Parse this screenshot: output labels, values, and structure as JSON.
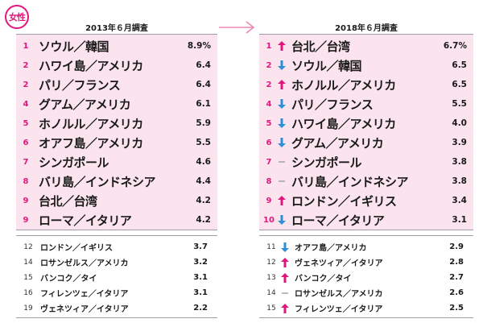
{
  "badge": "女性",
  "left": {
    "title": "2013年６月調査",
    "top": [
      {
        "rank": "1",
        "name": "ソウル／韓国",
        "share": "8.9%"
      },
      {
        "rank": "2",
        "name": "ハワイ島／アメリカ",
        "share": "6.4"
      },
      {
        "rank": "2",
        "name": "パリ／フランス",
        "share": "6.4"
      },
      {
        "rank": "4",
        "name": "グアム／アメリカ",
        "share": "6.1"
      },
      {
        "rank": "5",
        "name": "ホノルル／アメリカ",
        "share": "5.9"
      },
      {
        "rank": "6",
        "name": "オアフ島／アメリカ",
        "share": "5.5"
      },
      {
        "rank": "7",
        "name": "シンガポール",
        "share": "4.6"
      },
      {
        "rank": "8",
        "name": "バリ島／インドネシア",
        "share": "4.4"
      },
      {
        "rank": "9",
        "name": "台北／台湾",
        "share": "4.2"
      },
      {
        "rank": "9",
        "name": "ローマ／イタリア",
        "share": "4.2"
      }
    ],
    "bottom": [
      {
        "rank": "12",
        "name": "ロンドン／イギリス",
        "share": "3.7"
      },
      {
        "rank": "14",
        "name": "ロサンゼルス／アメリカ",
        "share": "3.2"
      },
      {
        "rank": "15",
        "name": "バンコク／タイ",
        "share": "3.1"
      },
      {
        "rank": "16",
        "name": "フィレンツェ／イタリア",
        "share": "3.1"
      },
      {
        "rank": "19",
        "name": "ヴェネツィア／イタリア",
        "share": "2.2"
      }
    ]
  },
  "right": {
    "title": "2018年６月調査",
    "top": [
      {
        "rank": "1",
        "trend": "up",
        "name": "台北／台湾",
        "share": "6.7%"
      },
      {
        "rank": "2",
        "trend": "down",
        "name": "ソウル／韓国",
        "share": "6.5"
      },
      {
        "rank": "2",
        "trend": "up",
        "name": "ホノルル／アメリカ",
        "share": "6.5"
      },
      {
        "rank": "4",
        "trend": "down",
        "name": "パリ／フランス",
        "share": "5.5"
      },
      {
        "rank": "5",
        "trend": "down",
        "name": "ハワイ島／アメリカ",
        "share": "4.0"
      },
      {
        "rank": "6",
        "trend": "down",
        "name": "グアム／アメリカ",
        "share": "3.9"
      },
      {
        "rank": "7",
        "trend": "same",
        "name": "シンガポール",
        "share": "3.8"
      },
      {
        "rank": "8",
        "trend": "same",
        "name": "バリ島／インドネシア",
        "share": "3.8"
      },
      {
        "rank": "9",
        "trend": "up",
        "name": "ロンドン／イギリス",
        "share": "3.4"
      },
      {
        "rank": "10",
        "trend": "down",
        "name": "ローマ／イタリア",
        "share": "3.1"
      }
    ],
    "bottom": [
      {
        "rank": "11",
        "trend": "down",
        "name": "オアフ島／アメリカ",
        "share": "2.9"
      },
      {
        "rank": "12",
        "trend": "up",
        "name": "ヴェネツィア／イタリア",
        "share": "2.8"
      },
      {
        "rank": "13",
        "trend": "up",
        "name": "バンコク／タイ",
        "share": "2.7"
      },
      {
        "rank": "14",
        "trend": "same",
        "name": "ロサンゼルス／アメリカ",
        "share": "2.6"
      },
      {
        "rank": "15",
        "trend": "up",
        "name": "フィレンツェ／イタリア",
        "share": "2.5"
      }
    ]
  },
  "colors": {
    "accent": "#e0177c",
    "up": "#e0177c",
    "down": "#2f8fd6",
    "same": "#9aa0a6",
    "panel": "#fbe4ee"
  }
}
